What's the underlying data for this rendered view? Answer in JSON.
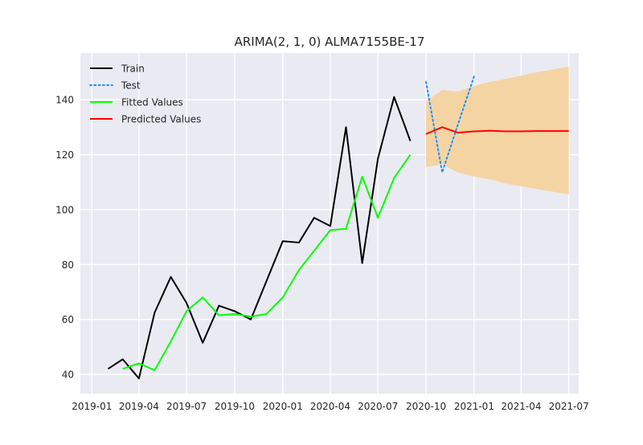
{
  "chart_data": {
    "type": "line",
    "title": "ARIMA(2, 1, 0) ALMA7155BE-17",
    "xlabel": "",
    "ylabel": "",
    "xlim": [
      "2018-12-10",
      "2021-07-20"
    ],
    "ylim": [
      33,
      157
    ],
    "x_ticks": [
      "2019-01",
      "2019-04",
      "2019-07",
      "2019-10",
      "2020-01",
      "2020-04",
      "2020-07",
      "2020-10",
      "2021-01",
      "2021-04",
      "2021-07"
    ],
    "y_ticks": [
      40,
      60,
      80,
      100,
      120,
      140
    ],
    "grid": true,
    "background_color": "#eaeaf2",
    "legend": {
      "position": "top-left",
      "entries": [
        "Train",
        "Test",
        "Fitted Values",
        "Predicted Values"
      ]
    },
    "series": [
      {
        "name": "Train",
        "color": "#000000",
        "style": "solid",
        "x": [
          "2019-02-01",
          "2019-03-01",
          "2019-04-01",
          "2019-05-01",
          "2019-06-01",
          "2019-07-01",
          "2019-08-01",
          "2019-09-01",
          "2019-10-01",
          "2019-11-01",
          "2019-12-01",
          "2020-01-01",
          "2020-02-01",
          "2020-03-01",
          "2020-04-01",
          "2020-05-01",
          "2020-06-01",
          "2020-07-01",
          "2020-08-01",
          "2020-09-01"
        ],
        "values": [
          42,
          45.5,
          38.5,
          62.5,
          75.5,
          66,
          51.5,
          65,
          63,
          60,
          74,
          88.5,
          88,
          97,
          94,
          130,
          80.5,
          118.5,
          141,
          125
        ]
      },
      {
        "name": "Test",
        "color": "#1e90ff",
        "style": "dotted",
        "x": [
          "2020-10-01",
          "2020-11-01",
          "2020-12-01",
          "2021-01-01"
        ],
        "values": [
          146.5,
          113.5,
          131,
          148.5
        ]
      },
      {
        "name": "Fitted Values",
        "color": "#00ff00",
        "style": "solid",
        "x": [
          "2019-03-01",
          "2019-04-01",
          "2019-05-01",
          "2019-06-01",
          "2019-07-01",
          "2019-08-01",
          "2019-09-01",
          "2019-10-01",
          "2019-11-01",
          "2019-12-01",
          "2020-01-01",
          "2020-02-01",
          "2020-03-01",
          "2020-04-01",
          "2020-05-01",
          "2020-06-01",
          "2020-07-01",
          "2020-08-01",
          "2020-09-01"
        ],
        "values": [
          42,
          44,
          41.5,
          52,
          63,
          68,
          61.5,
          62,
          61,
          62,
          68,
          78,
          85,
          92.5,
          93,
          112,
          97,
          111.5,
          120
        ]
      },
      {
        "name": "Predicted Values",
        "color": "#ff0000",
        "style": "solid",
        "x": [
          "2020-10-01",
          "2020-11-01",
          "2020-12-01",
          "2021-01-01",
          "2021-02-01",
          "2021-03-01",
          "2021-04-01",
          "2021-05-01",
          "2021-06-01",
          "2021-07-01"
        ],
        "values": [
          127.5,
          130,
          128,
          128.5,
          128.7,
          128.5,
          128.5,
          128.6,
          128.6,
          128.6
        ],
        "ci_lower": [
          115.5,
          116.5,
          113.5,
          112,
          111,
          109.5,
          108.5,
          107.5,
          106.5,
          105.5
        ],
        "ci_upper": [
          139.5,
          143.5,
          143,
          145,
          146.5,
          147.5,
          148.8,
          150,
          151,
          152
        ],
        "ci_color": "#f5d39e"
      }
    ]
  }
}
